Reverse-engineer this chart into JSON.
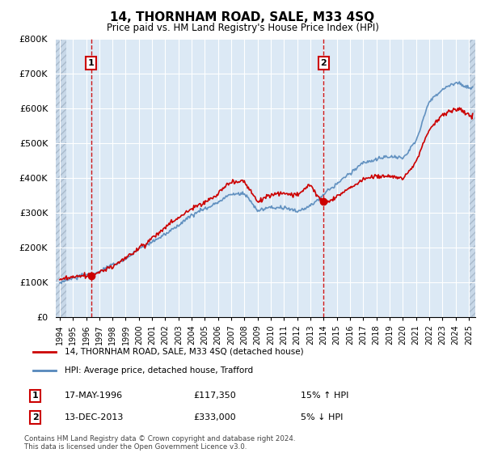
{
  "title": "14, THORNHAM ROAD, SALE, M33 4SQ",
  "subtitle": "Price paid vs. HM Land Registry's House Price Index (HPI)",
  "ylabel_values": [
    "£0",
    "£100K",
    "£200K",
    "£300K",
    "£400K",
    "£500K",
    "£600K",
    "£700K",
    "£800K"
  ],
  "ylim": [
    0,
    800000
  ],
  "xlim_start": 1993.7,
  "xlim_end": 2025.5,
  "sale1_date": 1996.38,
  "sale1_price": 117350,
  "sale1_label": "1",
  "sale2_date": 2014.0,
  "sale2_price": 333000,
  "sale2_label": "2",
  "red_line_color": "#cc0000",
  "blue_line_color": "#5588bb",
  "vline_color": "#cc0000",
  "dot_color": "#cc0000",
  "chart_bg_color": "#dce9f5",
  "hatch_color": "#c8d8e8",
  "grid_color": "#ffffff",
  "legend_label_red": "14, THORNHAM ROAD, SALE, M33 4SQ (detached house)",
  "legend_label_blue": "HPI: Average price, detached house, Trafford",
  "table_row1": [
    "1",
    "17-MAY-1996",
    "£117,350",
    "15% ↑ HPI"
  ],
  "table_row2": [
    "2",
    "13-DEC-2013",
    "£333,000",
    "5% ↓ HPI"
  ],
  "footer": "Contains HM Land Registry data © Crown copyright and database right 2024.\nThis data is licensed under the Open Government Licence v3.0."
}
